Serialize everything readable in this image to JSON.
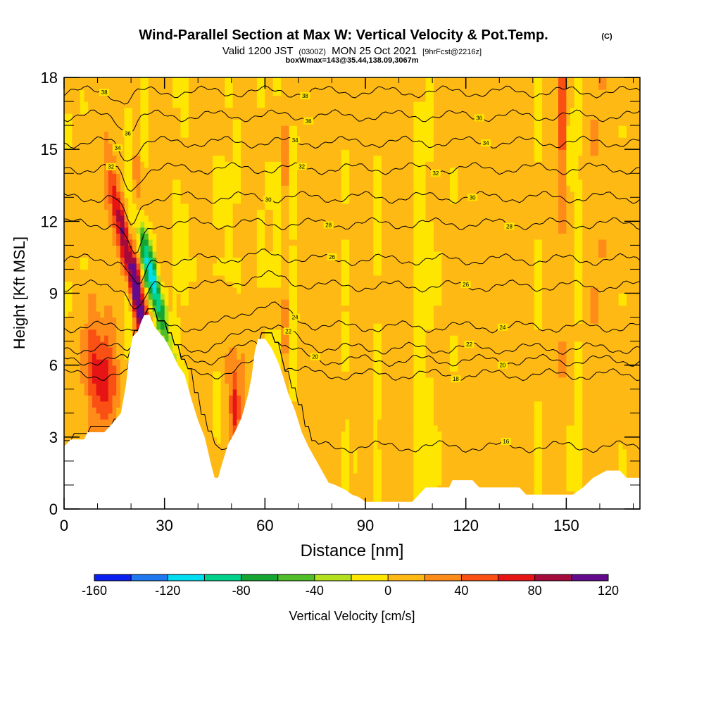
{
  "header": {
    "title": "Wind-Parallel Section at Max W: Vertical Velocity & Pot.Temp.",
    "title_mark": "(C)",
    "valid_prefix": "Valid 1200 JST",
    "valid_utc": "(0300Z)",
    "valid_date": "MON 25 Oct 2021",
    "forecast": "[9hrFcst@2216z]",
    "box_info": "boxWmax=143@35.44,138.09,3067m"
  },
  "chart_data": {
    "type": "heatmap",
    "xlabel": "Distance [nm]",
    "ylabel": "Height [Kft MSL]",
    "xlim": [
      0,
      172
    ],
    "ylim": [
      0,
      18
    ],
    "x_ticks": [
      0,
      30,
      60,
      90,
      120,
      150
    ],
    "y_ticks": [
      0,
      3,
      6,
      9,
      12,
      15,
      18
    ],
    "x_minor_step": 10,
    "y_minor_step": 1,
    "colorbar": {
      "label": "Vertical Velocity [cm/s]",
      "tick_labels": [
        -160,
        -120,
        -80,
        -40,
        0,
        40,
        80,
        120
      ],
      "boundaries": [
        -160,
        -140,
        -120,
        -100,
        -80,
        -60,
        -40,
        -20,
        0,
        20,
        40,
        60,
        80,
        100,
        120
      ],
      "colors": [
        "#0a1ef0",
        "#1e78f0",
        "#00dcf0",
        "#00d28c",
        "#14a532",
        "#50be28",
        "#b4e11e",
        "#ffe600",
        "#ffb914",
        "#ff8c19",
        "#fa5014",
        "#e61414",
        "#a50a3c",
        "#640a8c"
      ]
    },
    "background_value": 8,
    "velocity_features": [
      {
        "x": 21,
        "y": 9.5,
        "sx": 1.4,
        "sy": 2.6,
        "v": 130,
        "tilt": -1.6
      },
      {
        "x": 26,
        "y": 9.8,
        "sx": 1.5,
        "sy": 2.2,
        "v": -120,
        "tilt": -1.6
      },
      {
        "x": 22,
        "y": 12.2,
        "sx": 2.0,
        "sy": 1.3,
        "v": 40,
        "tilt": -1.0
      },
      {
        "x": 19.5,
        "y": 11.0,
        "sx": 1.0,
        "sy": 1.3,
        "v": -30,
        "tilt": 0
      },
      {
        "x": 12,
        "y": 5.3,
        "sx": 2.5,
        "sy": 1.3,
        "v": 50,
        "tilt": 0
      },
      {
        "x": 8,
        "y": 6.4,
        "sx": 2.6,
        "sy": 1.3,
        "v": 30,
        "tilt": 0
      },
      {
        "x": 51,
        "y": 4.0,
        "sx": 1.2,
        "sy": 1.3,
        "v": 55,
        "tilt": 0
      },
      {
        "x": 46,
        "y": 4.6,
        "sx": 0.9,
        "sy": 1.0,
        "v": -25,
        "tilt": 0
      },
      {
        "x": 49,
        "y": 5.8,
        "sx": 2.8,
        "sy": 1.5,
        "v": 25,
        "tilt": 0
      },
      {
        "x": 149,
        "y": 16.5,
        "sx": 1.2,
        "sy": 1.8,
        "v": 40,
        "tilt": 0
      },
      {
        "x": 151,
        "y": 15.2,
        "sx": 0.8,
        "sy": 1.2,
        "v": -30,
        "tilt": 0
      },
      {
        "x": 105,
        "y": 3.0,
        "sx": 4.0,
        "sy": 1.5,
        "v": -8,
        "tilt": 0
      },
      {
        "x": 90,
        "y": 2.0,
        "sx": 4.0,
        "sy": 1.2,
        "v": -8,
        "tilt": 0
      },
      {
        "x": 152,
        "y": 2.0,
        "sx": 8.0,
        "sy": 1.5,
        "v": -8,
        "tilt": 0
      },
      {
        "x": 132,
        "y": 2.2,
        "sx": 2.5,
        "sy": 1.3,
        "v": -5,
        "tilt": 0
      },
      {
        "x": 60,
        "y": 10.0,
        "sx": 15,
        "sy": 0.5,
        "v": -5,
        "tilt": 0
      },
      {
        "x": 95,
        "y": 10.1,
        "sx": 14,
        "sy": 0.7,
        "v": -4,
        "tilt": 0
      },
      {
        "x": 120,
        "y": 10.0,
        "sx": 12,
        "sy": 0.6,
        "v": -4,
        "tilt": 0
      }
    ],
    "terrain": [
      [
        0,
        2.6
      ],
      [
        2,
        2.9
      ],
      [
        6,
        2.9
      ],
      [
        7,
        3.2
      ],
      [
        12,
        3.2
      ],
      [
        14,
        3.5
      ],
      [
        17,
        4.0
      ],
      [
        18.5,
        5.2
      ],
      [
        19.5,
        6.5
      ],
      [
        20.5,
        7.2
      ],
      [
        22,
        7.4
      ],
      [
        23,
        7.8
      ],
      [
        24,
        8.1
      ],
      [
        25.5,
        8.1
      ],
      [
        27,
        7.6
      ],
      [
        30,
        7.1
      ],
      [
        32,
        6.6
      ],
      [
        34,
        6.0
      ],
      [
        36,
        5.6
      ],
      [
        38,
        4.6
      ],
      [
        40,
        3.7
      ],
      [
        42,
        3.0
      ],
      [
        44,
        1.8
      ],
      [
        45,
        1.3
      ],
      [
        46,
        1.3
      ],
      [
        47,
        1.8
      ],
      [
        49,
        2.7
      ],
      [
        51,
        3.2
      ],
      [
        53,
        3.8
      ],
      [
        55,
        4.8
      ],
      [
        56,
        5.5
      ],
      [
        57,
        6.6
      ],
      [
        58,
        7.1
      ],
      [
        60,
        7.1
      ],
      [
        62,
        6.7
      ],
      [
        64,
        6.1
      ],
      [
        65.5,
        5.5
      ],
      [
        67,
        4.8
      ],
      [
        69,
        4.1
      ],
      [
        71,
        3.2
      ],
      [
        73,
        2.6
      ],
      [
        75,
        2.1
      ],
      [
        77,
        1.6
      ],
      [
        79,
        1.1
      ],
      [
        81,
        1.0
      ],
      [
        84,
        0.8
      ],
      [
        86,
        0.6
      ],
      [
        88,
        0.5
      ],
      [
        90,
        0.3
      ],
      [
        104,
        0.3
      ],
      [
        106,
        0.6
      ],
      [
        108,
        0.9
      ],
      [
        115,
        0.9
      ],
      [
        116,
        1.2
      ],
      [
        122,
        1.2
      ],
      [
        124,
        0.9
      ],
      [
        136,
        0.9
      ],
      [
        138,
        0.6
      ],
      [
        146,
        0.6
      ],
      [
        152,
        0.6
      ],
      [
        155,
        0.9
      ],
      [
        158,
        1.3
      ],
      [
        162,
        1.6
      ],
      [
        166,
        1.6
      ],
      [
        168,
        1.3
      ],
      [
        172,
        1.3
      ]
    ],
    "theta_contours": [
      {
        "label": "16",
        "base": 2.6,
        "hump": 0.1,
        "hump_x": 52,
        "dip": 0,
        "dip_x": 0,
        "label_x": [
          132
        ]
      },
      {
        "label": "18",
        "base": 5.6,
        "hump": 0.5,
        "hump_x": 60,
        "dip": 0,
        "dip_x": 0,
        "label_x": [
          117
        ]
      },
      {
        "label": "20",
        "base": 6.2,
        "hump": 0.8,
        "hump_x": 60,
        "dip": 0,
        "dip_x": 0,
        "label_x": [
          75,
          131
        ]
      },
      {
        "label": "22",
        "base": 6.7,
        "hump": 1.0,
        "hump_x": 60,
        "dip": 0,
        "dip_x": 0,
        "label_x": [
          67,
          121
        ]
      },
      {
        "label": "24",
        "base": 7.6,
        "hump": 0.9,
        "hump_x": 60,
        "dip": 0,
        "dip_x": 0,
        "label_x": [
          69,
          131
        ]
      },
      {
        "label": "26",
        "base": 9.3,
        "hump": 0.4,
        "hump_x": 60,
        "dip": 1.0,
        "dip_x": 22,
        "label_x": [
          120
        ]
      },
      {
        "label": "26",
        "base": 10.4,
        "hump": 0.2,
        "hump_x": 60,
        "dip": 1.2,
        "dip_x": 22,
        "label_x": [
          80
        ]
      },
      {
        "label": "28",
        "base": 11.9,
        "hump": 0.0,
        "hump_x": 60,
        "dip": 1.4,
        "dip_x": 21,
        "label_x": [
          79,
          133
        ]
      },
      {
        "label": "30",
        "base": 13.0,
        "hump": 0.0,
        "hump_x": 60,
        "dip": 1.2,
        "dip_x": 20,
        "label_x": [
          61,
          122
        ]
      },
      {
        "label": "32",
        "base": 14.2,
        "hump": 0.0,
        "hump_x": 60,
        "dip": 0.9,
        "dip_x": 20,
        "label_x": [
          14,
          71,
          111
        ]
      },
      {
        "label": "34",
        "base": 15.3,
        "hump": 0.0,
        "hump_x": 60,
        "dip": 0.7,
        "dip_x": 19,
        "label_x": [
          16,
          69,
          126
        ]
      },
      {
        "label": "36",
        "base": 16.4,
        "hump": 0.0,
        "hump_x": 60,
        "dip": 0.6,
        "dip_x": 19,
        "label_x": [
          19,
          73,
          124
        ]
      },
      {
        "label": "38",
        "base": 17.4,
        "hump": 0.0,
        "hump_x": 60,
        "dip": 0.4,
        "dip_x": 18,
        "label_x": [
          12,
          72
        ]
      }
    ]
  }
}
